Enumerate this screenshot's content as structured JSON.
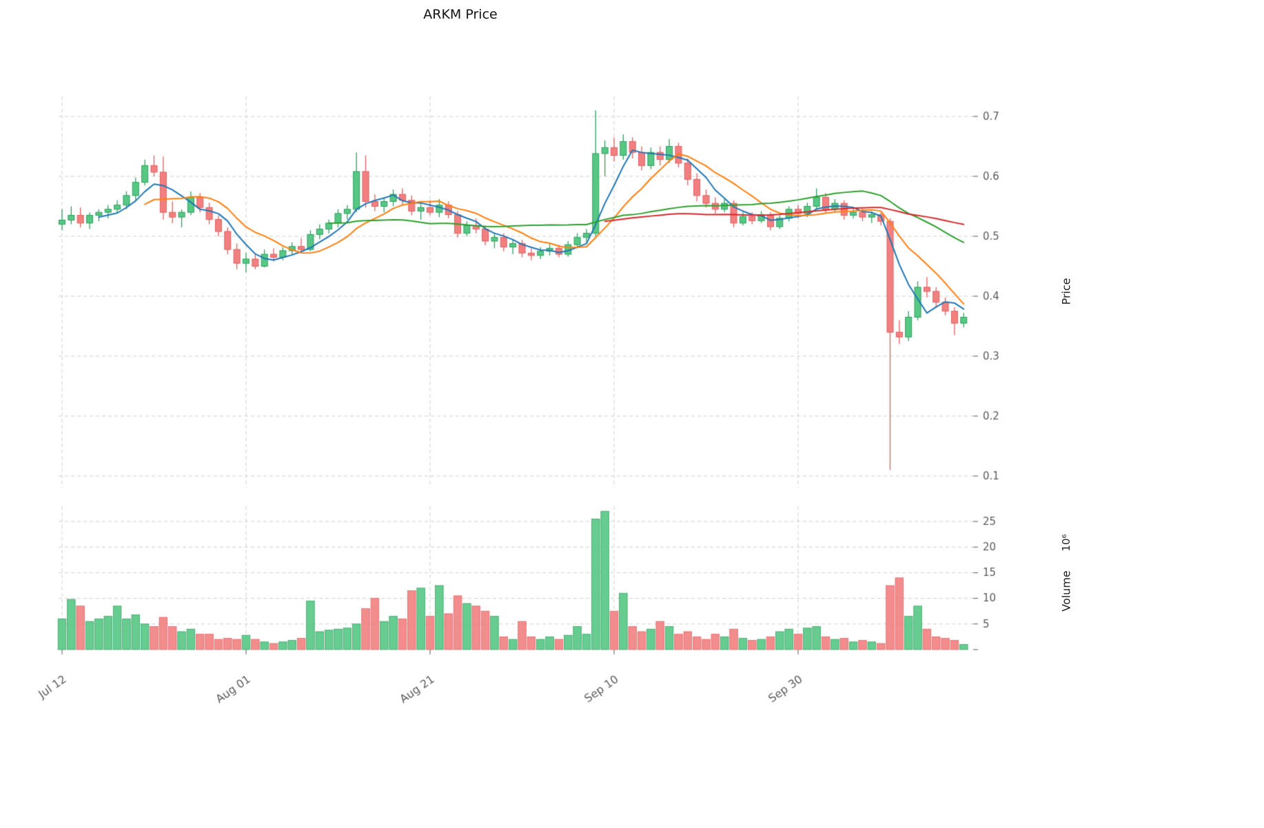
{
  "title": "ARKM Price",
  "axes": {
    "price_label": "Price",
    "volume_label": "Volume",
    "volume_exponent": "10⁶"
  },
  "style": {
    "background": "#ffffff",
    "grid_color": "#cfcfcf",
    "tick_color": "#5a5a5a",
    "title_color": "#111111",
    "up": "#57c784",
    "up_edge": "#2f9e5f",
    "down": "#f28080",
    "down_edge": "#df5f5f"
  },
  "chart_data": {
    "type": "candlestick",
    "title": "ARKM Price",
    "panels": [
      "price",
      "volume"
    ],
    "ylabel": "Price",
    "ylabel_volume": "Volume 10⁶",
    "price_ticks": [
      0.1,
      0.2,
      0.3,
      0.4,
      0.5,
      0.6,
      0.7
    ],
    "volume_ticks": [
      5,
      10,
      15,
      20,
      25
    ],
    "x_ticks": [
      {
        "index": 0,
        "label": "Jul 12"
      },
      {
        "index": 20,
        "label": "Aug 01"
      },
      {
        "index": 40,
        "label": "Aug 21"
      },
      {
        "index": 60,
        "label": "Sep 10"
      },
      {
        "index": 80,
        "label": "Sep 30"
      }
    ],
    "price_ylim": [
      0.08,
      0.735
    ],
    "volume_ylim": [
      0,
      28
    ],
    "volume_unit": "millions",
    "grid": "dashed",
    "legend": "none",
    "moving_averages": [
      {
        "name": "MA5",
        "window": 5,
        "color": "#1f77b4"
      },
      {
        "name": "MA10",
        "window": 10,
        "color": "#ff7f0e"
      },
      {
        "name": "MA30",
        "window": 30,
        "color": "#2ca02c"
      },
      {
        "name": "MA60",
        "window": 60,
        "color": "#d62728"
      }
    ],
    "columns": [
      "open",
      "high",
      "low",
      "close",
      "volume_millions"
    ],
    "candles": [
      [
        0.52,
        0.545,
        0.51,
        0.527,
        6.0
      ],
      [
        0.527,
        0.55,
        0.52,
        0.535,
        9.8
      ],
      [
        0.535,
        0.548,
        0.515,
        0.522,
        8.5
      ],
      [
        0.522,
        0.54,
        0.512,
        0.535,
        5.5
      ],
      [
        0.535,
        0.545,
        0.525,
        0.54,
        6.0
      ],
      [
        0.54,
        0.552,
        0.53,
        0.545,
        6.5
      ],
      [
        0.545,
        0.56,
        0.538,
        0.552,
        8.5
      ],
      [
        0.552,
        0.575,
        0.545,
        0.568,
        6.0
      ],
      [
        0.568,
        0.598,
        0.56,
        0.59,
        6.8
      ],
      [
        0.59,
        0.628,
        0.585,
        0.618,
        5.0
      ],
      [
        0.618,
        0.635,
        0.6,
        0.607,
        4.5
      ],
      [
        0.607,
        0.633,
        0.528,
        0.54,
        6.3
      ],
      [
        0.54,
        0.558,
        0.522,
        0.532,
        4.5
      ],
      [
        0.532,
        0.545,
        0.515,
        0.54,
        3.5
      ],
      [
        0.54,
        0.575,
        0.535,
        0.565,
        4.0
      ],
      [
        0.565,
        0.572,
        0.54,
        0.548,
        3.0
      ],
      [
        0.548,
        0.556,
        0.52,
        0.528,
        3.0
      ],
      [
        0.528,
        0.535,
        0.5,
        0.508,
        2.0
      ],
      [
        0.508,
        0.515,
        0.47,
        0.478,
        2.2
      ],
      [
        0.478,
        0.488,
        0.445,
        0.455,
        2.0
      ],
      [
        0.455,
        0.472,
        0.44,
        0.462,
        2.8
      ],
      [
        0.462,
        0.47,
        0.445,
        0.45,
        2.0
      ],
      [
        0.45,
        0.478,
        0.448,
        0.47,
        1.5
      ],
      [
        0.47,
        0.48,
        0.458,
        0.465,
        1.2
      ],
      [
        0.465,
        0.482,
        0.46,
        0.476,
        1.5
      ],
      [
        0.476,
        0.49,
        0.47,
        0.483,
        1.8
      ],
      [
        0.483,
        0.497,
        0.473,
        0.478,
        2.2
      ],
      [
        0.478,
        0.51,
        0.475,
        0.503,
        9.5
      ],
      [
        0.503,
        0.52,
        0.495,
        0.512,
        3.5
      ],
      [
        0.512,
        0.528,
        0.505,
        0.522,
        3.8
      ],
      [
        0.522,
        0.545,
        0.515,
        0.538,
        4.0
      ],
      [
        0.538,
        0.552,
        0.528,
        0.545,
        4.2
      ],
      [
        0.545,
        0.64,
        0.54,
        0.608,
        5.0
      ],
      [
        0.608,
        0.635,
        0.548,
        0.558,
        8.0
      ],
      [
        0.558,
        0.57,
        0.542,
        0.55,
        10.0
      ],
      [
        0.55,
        0.565,
        0.54,
        0.558,
        5.5
      ],
      [
        0.558,
        0.578,
        0.55,
        0.57,
        6.5
      ],
      [
        0.57,
        0.58,
        0.552,
        0.56,
        6.0
      ],
      [
        0.56,
        0.568,
        0.535,
        0.542,
        11.5
      ],
      [
        0.542,
        0.555,
        0.528,
        0.548,
        12.0
      ],
      [
        0.548,
        0.56,
        0.535,
        0.54,
        6.5
      ],
      [
        0.54,
        0.562,
        0.532,
        0.552,
        12.5
      ],
      [
        0.552,
        0.558,
        0.53,
        0.536,
        7.0
      ],
      [
        0.536,
        0.542,
        0.498,
        0.505,
        10.5
      ],
      [
        0.505,
        0.525,
        0.5,
        0.518,
        9.0
      ],
      [
        0.518,
        0.53,
        0.505,
        0.512,
        8.5
      ],
      [
        0.512,
        0.518,
        0.485,
        0.492,
        7.5
      ],
      [
        0.492,
        0.505,
        0.48,
        0.498,
        6.5
      ],
      [
        0.498,
        0.505,
        0.475,
        0.482,
        2.5
      ],
      [
        0.482,
        0.495,
        0.47,
        0.488,
        2.0
      ],
      [
        0.488,
        0.494,
        0.465,
        0.472,
        5.5
      ],
      [
        0.472,
        0.48,
        0.46,
        0.468,
        2.5
      ],
      [
        0.468,
        0.482,
        0.462,
        0.475,
        2.0
      ],
      [
        0.475,
        0.488,
        0.468,
        0.48,
        2.5
      ],
      [
        0.48,
        0.486,
        0.465,
        0.47,
        2.0
      ],
      [
        0.47,
        0.492,
        0.466,
        0.486,
        2.8
      ],
      [
        0.486,
        0.505,
        0.48,
        0.498,
        4.5
      ],
      [
        0.498,
        0.512,
        0.49,
        0.505,
        3.0
      ],
      [
        0.505,
        0.71,
        0.5,
        0.638,
        25.5
      ],
      [
        0.638,
        0.66,
        0.6,
        0.648,
        27.0
      ],
      [
        0.648,
        0.665,
        0.625,
        0.635,
        7.5
      ],
      [
        0.635,
        0.67,
        0.628,
        0.658,
        11.0
      ],
      [
        0.658,
        0.665,
        0.63,
        0.64,
        4.5
      ],
      [
        0.64,
        0.65,
        0.61,
        0.618,
        3.5
      ],
      [
        0.618,
        0.648,
        0.612,
        0.64,
        4.0
      ],
      [
        0.64,
        0.65,
        0.618,
        0.628,
        5.5
      ],
      [
        0.628,
        0.662,
        0.622,
        0.65,
        4.5
      ],
      [
        0.65,
        0.656,
        0.615,
        0.622,
        3.0
      ],
      [
        0.622,
        0.63,
        0.585,
        0.595,
        3.5
      ],
      [
        0.595,
        0.605,
        0.558,
        0.568,
        2.5
      ],
      [
        0.568,
        0.578,
        0.548,
        0.555,
        2.0
      ],
      [
        0.555,
        0.565,
        0.538,
        0.545,
        3.0
      ],
      [
        0.545,
        0.562,
        0.54,
        0.555,
        2.5
      ],
      [
        0.555,
        0.56,
        0.515,
        0.522,
        4.0
      ],
      [
        0.522,
        0.54,
        0.518,
        0.533,
        2.2
      ],
      [
        0.533,
        0.54,
        0.52,
        0.526,
        1.8
      ],
      [
        0.526,
        0.542,
        0.522,
        0.536,
        2.0
      ],
      [
        0.536,
        0.54,
        0.51,
        0.516,
        2.5
      ],
      [
        0.516,
        0.535,
        0.512,
        0.53,
        3.5
      ],
      [
        0.53,
        0.55,
        0.525,
        0.545,
        4.0
      ],
      [
        0.545,
        0.552,
        0.53,
        0.538,
        3.0
      ],
      [
        0.538,
        0.556,
        0.532,
        0.55,
        4.2
      ],
      [
        0.55,
        0.58,
        0.545,
        0.565,
        4.5
      ],
      [
        0.565,
        0.572,
        0.538,
        0.545,
        2.5
      ],
      [
        0.545,
        0.562,
        0.54,
        0.555,
        2.0
      ],
      [
        0.555,
        0.56,
        0.528,
        0.535,
        2.2
      ],
      [
        0.535,
        0.548,
        0.53,
        0.54,
        1.5
      ],
      [
        0.54,
        0.546,
        0.525,
        0.532,
        1.8
      ],
      [
        0.532,
        0.542,
        0.522,
        0.536,
        1.5
      ],
      [
        0.536,
        0.54,
        0.518,
        0.525,
        1.2
      ],
      [
        0.525,
        0.53,
        0.11,
        0.34,
        12.5
      ],
      [
        0.34,
        0.36,
        0.32,
        0.332,
        14.0
      ],
      [
        0.332,
        0.375,
        0.325,
        0.365,
        6.5
      ],
      [
        0.365,
        0.425,
        0.36,
        0.415,
        8.5
      ],
      [
        0.415,
        0.432,
        0.398,
        0.408,
        4.0
      ],
      [
        0.408,
        0.415,
        0.38,
        0.39,
        2.5
      ],
      [
        0.39,
        0.398,
        0.368,
        0.375,
        2.2
      ],
      [
        0.375,
        0.382,
        0.335,
        0.355,
        1.8
      ],
      [
        0.355,
        0.372,
        0.348,
        0.365,
        1.0
      ]
    ]
  }
}
